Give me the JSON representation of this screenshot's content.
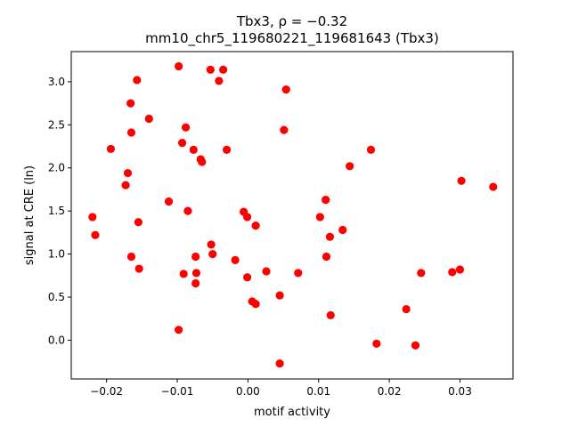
{
  "chart_data": {
    "type": "scatter",
    "title_line1": "Tbx3, ρ = −0.32",
    "title_line2": "mm10_chr5_119680221_119681643 (Tbx3)",
    "xlabel": "motif activity",
    "ylabel": "signal at CRE (ln)",
    "xlim": [
      -0.025,
      0.0375
    ],
    "ylim": [
      -0.45,
      3.35
    ],
    "grid": false,
    "x_ticks": [
      {
        "value": -0.02,
        "label": "−0.02"
      },
      {
        "value": -0.01,
        "label": "−0.01"
      },
      {
        "value": 0.0,
        "label": "0.00"
      },
      {
        "value": 0.01,
        "label": "0.01"
      },
      {
        "value": 0.02,
        "label": "0.02"
      },
      {
        "value": 0.03,
        "label": "0.03"
      }
    ],
    "y_ticks": [
      {
        "value": 0.0,
        "label": "0.0"
      },
      {
        "value": 0.5,
        "label": "0.5"
      },
      {
        "value": 1.0,
        "label": "1.0"
      },
      {
        "value": 1.5,
        "label": "1.5"
      },
      {
        "value": 2.0,
        "label": "2.0"
      },
      {
        "value": 2.5,
        "label": "2.5"
      },
      {
        "value": 3.0,
        "label": "3.0"
      }
    ],
    "marker_color": "#ff0000",
    "points": [
      {
        "x": -0.022,
        "y": 1.43
      },
      {
        "x": -0.0216,
        "y": 1.22
      },
      {
        "x": -0.0194,
        "y": 2.22
      },
      {
        "x": -0.0173,
        "y": 1.8
      },
      {
        "x": -0.017,
        "y": 1.94
      },
      {
        "x": -0.0166,
        "y": 2.75
      },
      {
        "x": -0.0165,
        "y": 2.41
      },
      {
        "x": -0.0165,
        "y": 0.97
      },
      {
        "x": -0.0157,
        "y": 3.02
      },
      {
        "x": -0.0155,
        "y": 1.37
      },
      {
        "x": -0.0154,
        "y": 0.83
      },
      {
        "x": -0.014,
        "y": 2.57
      },
      {
        "x": -0.0112,
        "y": 1.61
      },
      {
        "x": -0.0098,
        "y": 3.18
      },
      {
        "x": -0.0098,
        "y": 0.12
      },
      {
        "x": -0.0093,
        "y": 2.29
      },
      {
        "x": -0.0091,
        "y": 0.77
      },
      {
        "x": -0.0088,
        "y": 2.47
      },
      {
        "x": -0.0085,
        "y": 1.5
      },
      {
        "x": -0.0077,
        "y": 2.21
      },
      {
        "x": -0.0074,
        "y": 0.97
      },
      {
        "x": -0.0073,
        "y": 0.78
      },
      {
        "x": -0.0074,
        "y": 0.66
      },
      {
        "x": -0.0067,
        "y": 2.1
      },
      {
        "x": -0.0065,
        "y": 2.07
      },
      {
        "x": -0.0053,
        "y": 3.14
      },
      {
        "x": -0.0052,
        "y": 1.11
      },
      {
        "x": -0.005,
        "y": 1.0
      },
      {
        "x": -0.0041,
        "y": 3.01
      },
      {
        "x": -0.0035,
        "y": 3.14
      },
      {
        "x": -0.003,
        "y": 2.21
      },
      {
        "x": -0.0018,
        "y": 0.93
      },
      {
        "x": -0.0006,
        "y": 1.49
      },
      {
        "x": -0.0001,
        "y": 1.43
      },
      {
        "x": -0.0001,
        "y": 0.73
      },
      {
        "x": 0.0006,
        "y": 0.45
      },
      {
        "x": 0.0011,
        "y": 1.33
      },
      {
        "x": 0.0011,
        "y": 0.42
      },
      {
        "x": 0.0026,
        "y": 0.8
      },
      {
        "x": 0.0045,
        "y": 0.52
      },
      {
        "x": 0.0045,
        "y": -0.27
      },
      {
        "x": 0.0051,
        "y": 2.44
      },
      {
        "x": 0.0054,
        "y": 2.91
      },
      {
        "x": 0.0071,
        "y": 0.78
      },
      {
        "x": 0.0102,
        "y": 1.43
      },
      {
        "x": 0.011,
        "y": 1.63
      },
      {
        "x": 0.0111,
        "y": 0.97
      },
      {
        "x": 0.0116,
        "y": 1.2
      },
      {
        "x": 0.0117,
        "y": 0.29
      },
      {
        "x": 0.0134,
        "y": 1.28
      },
      {
        "x": 0.0144,
        "y": 2.02
      },
      {
        "x": 0.0174,
        "y": 2.21
      },
      {
        "x": 0.0182,
        "y": -0.04
      },
      {
        "x": 0.0224,
        "y": 0.36
      },
      {
        "x": 0.0237,
        "y": -0.06
      },
      {
        "x": 0.0245,
        "y": 0.78
      },
      {
        "x": 0.0289,
        "y": 0.79
      },
      {
        "x": 0.03,
        "y": 0.82
      },
      {
        "x": 0.0302,
        "y": 1.85
      },
      {
        "x": 0.0347,
        "y": 1.78
      }
    ]
  }
}
